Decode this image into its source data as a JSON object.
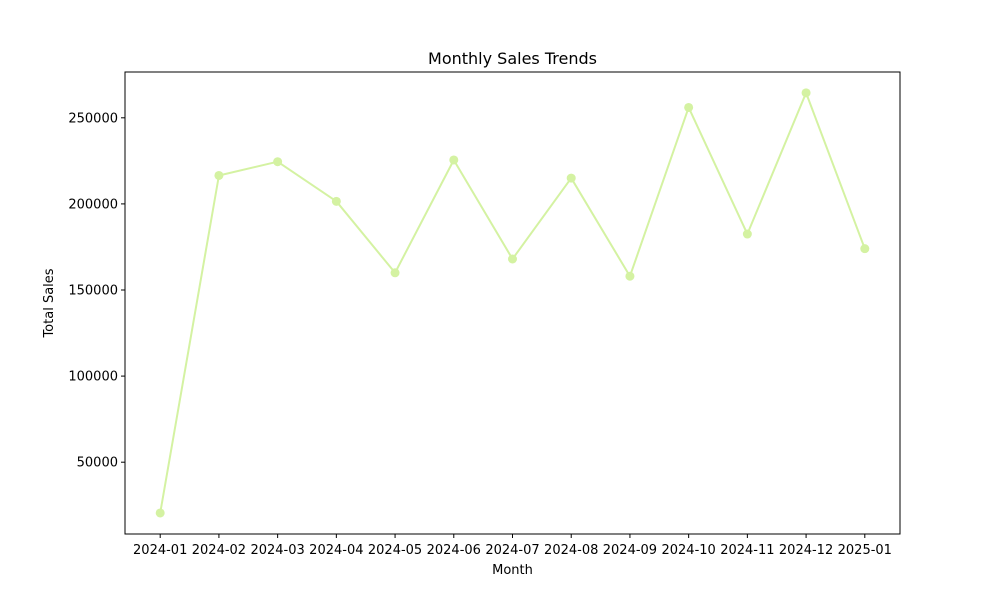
{
  "chart_data": {
    "type": "line",
    "title": "Monthly Sales Trends",
    "xlabel": "Month",
    "ylabel": "Total Sales",
    "categories": [
      "2024-01",
      "2024-02",
      "2024-03",
      "2024-04",
      "2024-05",
      "2024-06",
      "2024-07",
      "2024-08",
      "2024-09",
      "2024-10",
      "2024-11",
      "2024-12",
      "2025-01"
    ],
    "series": [
      {
        "values": [
          20500,
          216500,
          224500,
          201500,
          160000,
          225500,
          168000,
          215000,
          158000,
          256000,
          182500,
          264500,
          174000
        ]
      }
    ],
    "yticks": [
      50000,
      100000,
      150000,
      200000,
      250000
    ],
    "ylim": [
      8300,
      276600
    ],
    "grid": false,
    "legend": "none",
    "line_color": "#d4f2a2",
    "marker": "circle"
  }
}
